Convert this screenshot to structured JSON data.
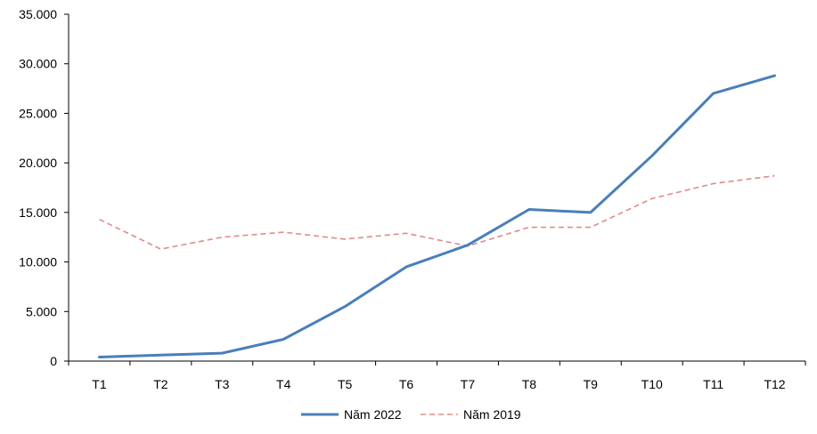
{
  "chart_data": {
    "type": "line",
    "categories": [
      "T1",
      "T2",
      "T3",
      "T4",
      "T5",
      "T6",
      "T7",
      "T8",
      "T9",
      "T10",
      "T11",
      "T12"
    ],
    "series": [
      {
        "name": "Năm 2022",
        "color": "#4a7ebb",
        "dash": "solid",
        "values": [
          400,
          600,
          800,
          2200,
          5500,
          9500,
          11700,
          15300,
          15000,
          20700,
          27000,
          28800
        ]
      },
      {
        "name": "Năm 2019",
        "color": "#e08a8a",
        "dash": "dashed",
        "values": [
          14300,
          11300,
          12500,
          13000,
          12300,
          12900,
          11600,
          13500,
          13500,
          16400,
          17900,
          18700
        ]
      }
    ],
    "yticks": [
      "0",
      "5.000",
      "10.000",
      "15.000",
      "20.000",
      "25.000",
      "30.000",
      "35.000"
    ],
    "ylim": [
      0,
      35000
    ],
    "grid": false,
    "legend_position": "bottom"
  }
}
